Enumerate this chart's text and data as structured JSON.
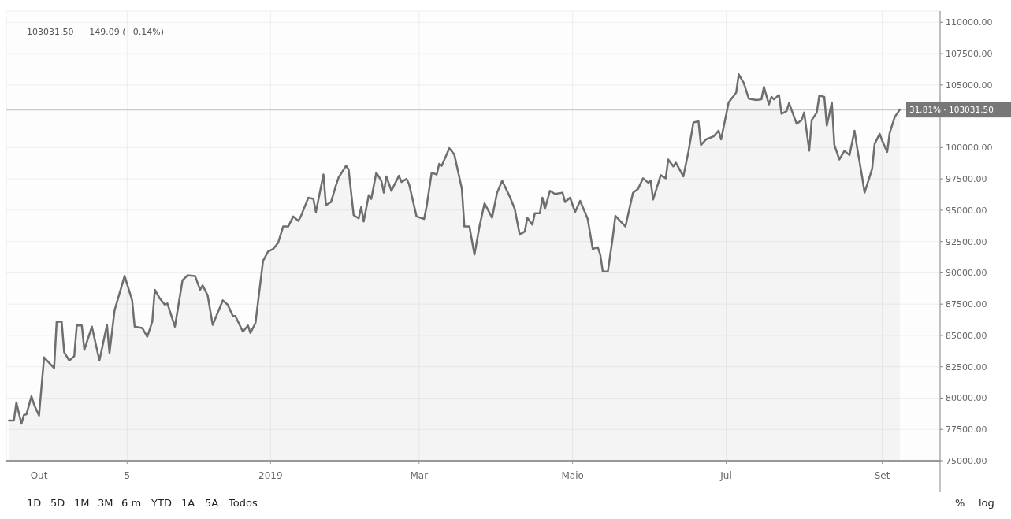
{
  "chart_data": {
    "type": "area",
    "title": "103031.50   −149.09 (−0.14%)",
    "annotations": [
      "1D",
      "5D",
      "1M",
      "3M",
      "6 m",
      "YTD",
      "1A",
      "5A",
      "Todos",
      "%",
      "log"
    ],
    "xlim": [
      "2018-09-18",
      "2019-09-24"
    ],
    "xticks": [
      {
        "value": "2018-10-01",
        "label": "Out"
      },
      {
        "value": "2018-11-05",
        "label": "5"
      },
      {
        "value": "2019-01-01",
        "label": "2019"
      },
      {
        "value": "2019-03-01",
        "label": "Mar"
      },
      {
        "value": "2019-05-01",
        "label": "Maio"
      },
      {
        "value": "2019-07-01",
        "label": "Jul"
      },
      {
        "value": "2019-09-01",
        "label": "Set"
      }
    ],
    "ylim": [
      75000,
      110900
    ],
    "yticks": [
      {
        "value": 75000,
        "label": "75000.00"
      },
      {
        "value": 77500,
        "label": "77500.00"
      },
      {
        "value": 80000,
        "label": "80000.00"
      },
      {
        "value": 82500,
        "label": "82500.00"
      },
      {
        "value": 85000,
        "label": "85000.00"
      },
      {
        "value": 87500,
        "label": "87500.00"
      },
      {
        "value": 90000,
        "label": "90000.00"
      },
      {
        "value": 92500,
        "label": "92500.00"
      },
      {
        "value": 95000,
        "label": "95000.00"
      },
      {
        "value": 97500,
        "label": "97500.00"
      },
      {
        "value": 100000,
        "label": "100000.00"
      },
      {
        "value": 105000,
        "label": "105000.00"
      },
      {
        "value": 107500,
        "label": "107500.00"
      },
      {
        "value": 110000,
        "label": "110000.00"
      }
    ],
    "grid": true,
    "ref_lines": [
      {
        "axis": "y",
        "value": 103031.5,
        "label": "31.81% · 103031.50",
        "color": "#cccccc"
      }
    ],
    "series": [
      {
        "color": "#6e6e6e",
        "x": [
          "2018-09-19",
          "2018-09-21",
          "2018-09-22",
          "2018-09-24",
          "2018-09-25",
          "2018-09-26",
          "2018-09-28",
          "2018-09-29",
          "2018-10-01",
          "2018-10-03",
          "2018-10-07",
          "2018-10-08",
          "2018-10-10",
          "2018-10-11",
          "2018-10-13",
          "2018-10-15",
          "2018-10-16",
          "2018-10-18",
          "2018-10-19",
          "2018-10-22",
          "2018-10-25",
          "2018-10-28",
          "2018-10-29",
          "2018-10-31",
          "2018-11-04",
          "2018-11-07",
          "2018-11-08",
          "2018-11-11",
          "2018-11-13",
          "2018-11-15",
          "2018-11-16",
          "2018-11-18",
          "2018-11-20",
          "2018-11-21",
          "2018-11-24",
          "2018-11-27",
          "2018-11-29",
          "2018-12-02",
          "2018-12-04",
          "2018-12-05",
          "2018-12-07",
          "2018-12-09",
          "2018-12-13",
          "2018-12-15",
          "2018-12-17",
          "2018-12-18",
          "2018-12-21",
          "2018-12-23",
          "2018-12-24",
          "2018-12-26",
          "2018-12-29",
          "2018-12-31",
          "2019-01-02",
          "2019-01-04",
          "2019-01-06",
          "2019-01-08",
          "2019-01-10",
          "2019-01-12",
          "2019-01-13",
          "2019-01-16",
          "2019-01-18",
          "2019-01-19",
          "2019-01-22",
          "2019-01-23",
          "2019-01-25",
          "2019-01-27",
          "2019-01-28",
          "2019-01-31",
          "2019-02-01",
          "2019-02-03",
          "2019-02-05",
          "2019-02-06",
          "2019-02-07",
          "2019-02-09",
          "2019-02-10",
          "2019-02-12",
          "2019-02-14",
          "2019-02-15",
          "2019-02-16",
          "2019-02-18",
          "2019-02-21",
          "2019-02-22",
          "2019-02-24",
          "2019-02-25",
          "2019-02-28",
          "2019-03-03",
          "2019-03-04",
          "2019-03-06",
          "2019-03-08",
          "2019-03-09",
          "2019-03-10",
          "2019-03-13",
          "2019-03-15",
          "2019-03-18",
          "2019-03-19",
          "2019-03-21",
          "2019-03-23",
          "2019-03-25",
          "2019-03-27",
          "2019-03-30",
          "2019-04-01",
          "2019-04-03",
          "2019-04-06",
          "2019-04-08",
          "2019-04-10",
          "2019-04-12",
          "2019-04-13",
          "2019-04-15",
          "2019-04-16",
          "2019-04-18",
          "2019-04-19",
          "2019-04-20",
          "2019-04-22",
          "2019-04-24",
          "2019-04-27",
          "2019-04-28",
          "2019-04-30",
          "2019-05-02",
          "2019-05-04",
          "2019-05-07",
          "2019-05-09",
          "2019-05-11",
          "2019-05-12",
          "2019-05-13",
          "2019-05-15",
          "2019-05-17",
          "2019-05-18",
          "2019-05-22",
          "2019-05-25",
          "2019-05-27",
          "2019-05-29",
          "2019-05-31",
          "2019-06-01",
          "2019-06-02",
          "2019-06-05",
          "2019-06-07",
          "2019-06-08",
          "2019-06-10",
          "2019-06-11",
          "2019-06-14",
          "2019-06-16",
          "2019-06-18",
          "2019-06-20",
          "2019-06-21",
          "2019-06-23",
          "2019-06-26",
          "2019-06-28",
          "2019-06-29",
          "2019-07-02",
          "2019-07-05",
          "2019-07-06",
          "2019-07-08",
          "2019-07-10",
          "2019-07-13",
          "2019-07-15",
          "2019-07-16",
          "2019-07-18",
          "2019-07-19",
          "2019-07-20",
          "2019-07-22",
          "2019-07-23",
          "2019-07-25",
          "2019-07-26",
          "2019-07-29",
          "2019-07-31",
          "2019-08-01",
          "2019-08-03",
          "2019-08-04",
          "2019-08-06",
          "2019-08-07",
          "2019-08-09",
          "2019-08-10",
          "2019-08-12",
          "2019-08-13",
          "2019-08-15",
          "2019-08-17",
          "2019-08-19",
          "2019-08-21",
          "2019-08-22",
          "2019-08-24",
          "2019-08-25",
          "2019-08-28",
          "2019-08-29",
          "2019-08-31",
          "2019-09-01",
          "2019-09-03",
          "2019-09-04",
          "2019-09-06",
          "2019-09-08"
        ],
        "values": [
          78200,
          78200,
          79650,
          77950,
          78650,
          78700,
          80150,
          79500,
          78600,
          83250,
          82400,
          86100,
          86100,
          83650,
          83000,
          83350,
          85800,
          85800,
          83850,
          85700,
          83000,
          85850,
          83600,
          87000,
          89750,
          87800,
          85700,
          85600,
          84900,
          86100,
          88650,
          87950,
          87450,
          87550,
          85700,
          89400,
          89800,
          89750,
          88650,
          89000,
          88200,
          85850,
          87800,
          87450,
          86550,
          86550,
          85300,
          85800,
          85200,
          86000,
          90950,
          91700,
          91900,
          92400,
          93700,
          93700,
          94500,
          94150,
          94500,
          96000,
          95900,
          94850,
          97850,
          95400,
          95650,
          97000,
          97600,
          98550,
          98250,
          94600,
          94350,
          95250,
          94100,
          96200,
          95900,
          98000,
          97350,
          96400,
          97700,
          96550,
          97750,
          97250,
          97500,
          97100,
          94500,
          94300,
          95300,
          98000,
          97850,
          98700,
          98550,
          99950,
          99450,
          96700,
          93700,
          93700,
          91450,
          93700,
          95550,
          94400,
          96400,
          97350,
          96100,
          95100,
          93050,
          93300,
          94400,
          93850,
          94750,
          94750,
          96000,
          95100,
          96550,
          96300,
          96400,
          95650,
          96000,
          94850,
          95750,
          94300,
          91900,
          92050,
          91450,
          90100,
          90100,
          92900,
          94550,
          93700,
          96400,
          96700,
          97550,
          97200,
          97350,
          95850,
          97800,
          97550,
          99050,
          98500,
          98800,
          97700,
          99650,
          102000,
          102100,
          100200,
          100650,
          100900,
          101350,
          100650,
          103600,
          104400,
          105850,
          105150,
          103900,
          103800,
          103850,
          104850,
          103450,
          104050,
          103850,
          104200,
          102700,
          102900,
          103550,
          101900,
          102200,
          102800,
          99750,
          102200,
          102800,
          104150,
          104050,
          101750,
          103600,
          100200,
          99050,
          99750,
          99400,
          101350,
          100050,
          97700,
          96400,
          98300,
          100300,
          101100,
          100550,
          99650,
          101200,
          102450,
          103031.5
        ]
      }
    ]
  }
}
